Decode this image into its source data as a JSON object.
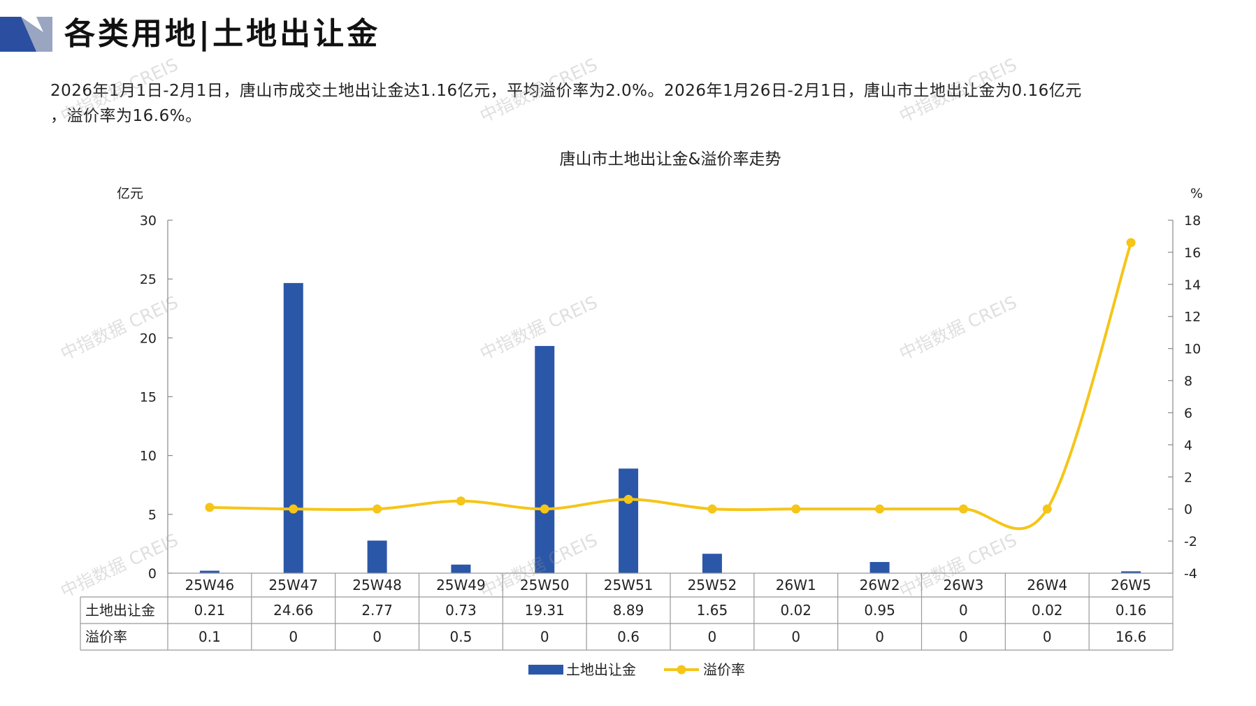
{
  "header": {
    "title": "各类用地|土地出让金",
    "colors": {
      "logo_dark": "#2b4ea0",
      "logo_light": "#9aa5c2",
      "logo_grey": "#c9ccd6"
    }
  },
  "summary": {
    "line1": "2026年1月1日-2月1日，唐山市成交土地出让金达1.16亿元，平均溢价率为2.0%。2026年1月26日-2月1日，唐山市土地出让金为0.16亿元",
    "line2": "，溢价率为16.6%。"
  },
  "watermark": "中指数据 CREIS",
  "chart_data": {
    "type": "bar+line",
    "title": "唐山市土地出让金&溢价率走势",
    "categories": [
      "25W46",
      "25W47",
      "25W48",
      "25W49",
      "25W50",
      "25W51",
      "25W52",
      "26W1",
      "26W2",
      "26W3",
      "26W4",
      "26W5"
    ],
    "series": [
      {
        "name": "土地出让金",
        "type": "bar",
        "axis": "left",
        "color": "#2b57a8",
        "values": [
          0.21,
          24.66,
          2.77,
          0.73,
          19.31,
          8.89,
          1.65,
          0.02,
          0.95,
          0,
          0.02,
          0.16
        ],
        "labels": [
          "0.21",
          "24.66",
          "2.77",
          "0.73",
          "19.31",
          "8.89",
          "1.65",
          "0.02",
          "0.95",
          "0",
          "0.02",
          "0.16"
        ]
      },
      {
        "name": "溢价率",
        "type": "line",
        "axis": "right",
        "color": "#f5c518",
        "values": [
          0.1,
          0,
          0,
          0.5,
          0,
          0.6,
          0,
          0,
          0,
          0,
          0,
          16.6
        ],
        "labels": [
          "0.1",
          "0",
          "0",
          "0.5",
          "0",
          "0.6",
          "0",
          "0",
          "0",
          "0",
          "0",
          "16.6"
        ]
      }
    ],
    "y_left": {
      "label": "亿元",
      "ticks": [
        "0",
        "5",
        "10",
        "15",
        "20",
        "25",
        "30"
      ],
      "ylim": [
        0,
        30
      ]
    },
    "y_right": {
      "label": "%",
      "ticks": [
        "-4",
        "-2",
        "0",
        "2",
        "4",
        "6",
        "8",
        "10",
        "12",
        "14",
        "16",
        "18"
      ],
      "ylim": [
        -4,
        18
      ]
    },
    "grid": false,
    "legend_position": "bottom"
  }
}
